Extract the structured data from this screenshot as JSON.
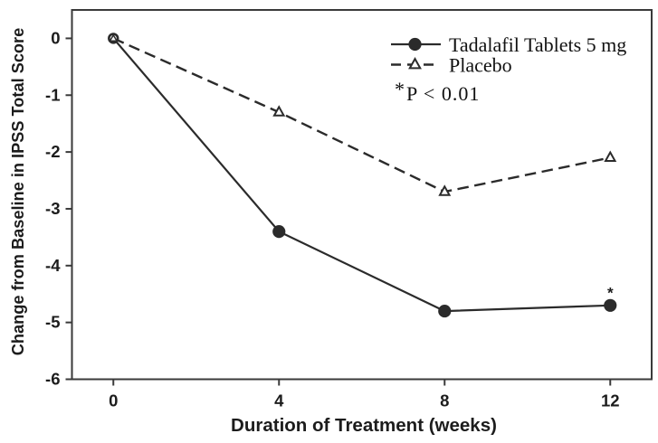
{
  "figure": {
    "background": "#ffffff",
    "axis_color": "#3a3a3a",
    "ink_color": "#1c1c1c",
    "series_color": "#2b2b2b"
  },
  "chart_data": {
    "type": "line",
    "x": [
      0,
      4,
      8,
      12
    ],
    "series": [
      {
        "name": "Tadalafil Tablets 5 mg",
        "values": [
          0,
          -3.4,
          -4.8,
          -4.7
        ],
        "line_style": "solid",
        "marker": "filled-circle"
      },
      {
        "name": "Placebo",
        "values": [
          0,
          -1.3,
          -2.7,
          -2.1
        ],
        "line_style": "dashed",
        "marker": "open-triangle"
      }
    ],
    "title": "",
    "xlabel": "Duration of Treatment (weeks)",
    "ylabel": "Change from Baseline in IPSS Total Score",
    "xlim": [
      -1,
      13
    ],
    "ylim": [
      -6,
      0.5
    ],
    "x_ticks": [
      0,
      4,
      8,
      12
    ],
    "y_ticks": [
      0,
      -1,
      -2,
      -3,
      -4,
      -5,
      -6
    ],
    "grid": false,
    "legend_position": "upper-right-inside",
    "annotations": [
      {
        "symbol": "*",
        "text": "P < 0.01",
        "location": "legend-area"
      },
      {
        "symbol": "*",
        "location": "above-point",
        "series": "Tadalafil Tablets 5 mg",
        "x": 12
      }
    ]
  }
}
